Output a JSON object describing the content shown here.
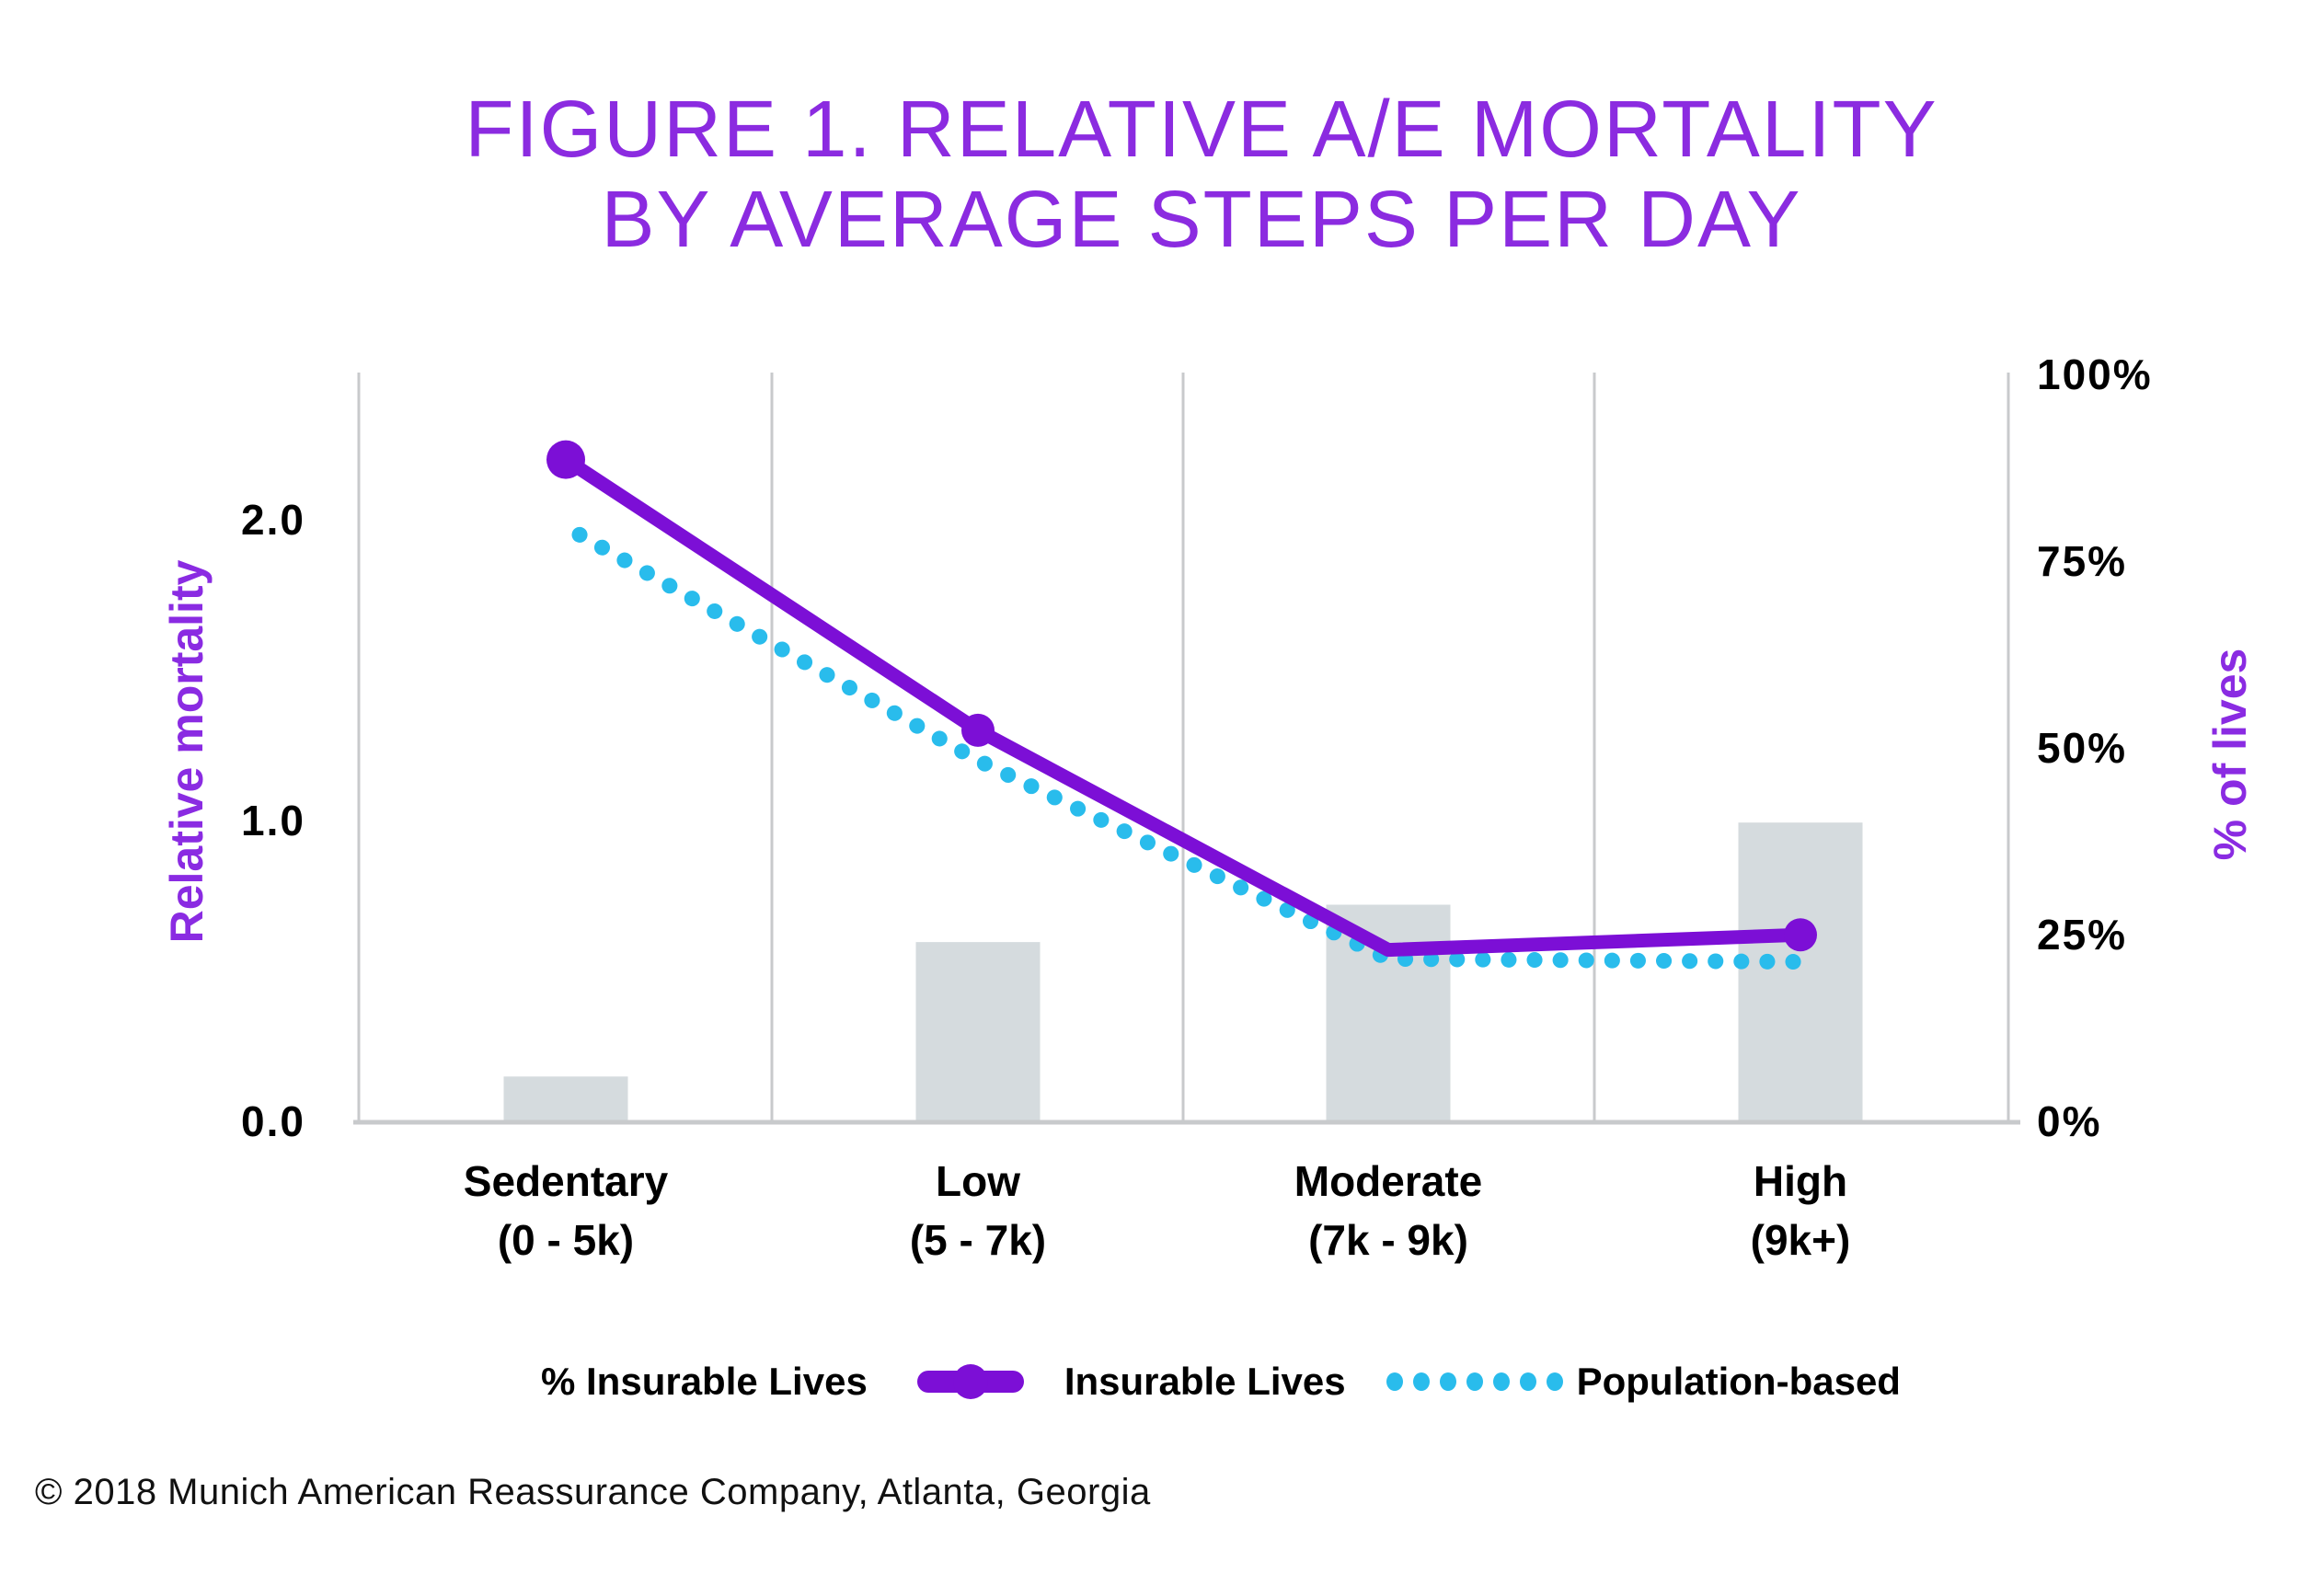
{
  "title": {
    "line1": "FIGURE 1. RELATIVE A/E MORTALITY",
    "line2": "BY AVERAGE STEPS PER DAY"
  },
  "footer": "© 2018 Munich American Reassurance Company, Atlanta, Georgia",
  "colors": {
    "title_purple": "#8B2BE0",
    "axis_label_purple": "#8A2BE2",
    "line_purple": "#7C0FD6",
    "dot_cyan": "#29BCEC",
    "bar_gray": "#D5DBDE",
    "grid_gray": "#C8CACC",
    "text_black": "#000000"
  },
  "chart_data": {
    "type": "combo: bar + line + dotted-line",
    "title": "Figure 1. Relative A/E mortality by average steps per day",
    "categories": [
      {
        "label": "Sedentary",
        "range": "(0 - 5k)"
      },
      {
        "label": "Low",
        "range": "(5 - 7k)"
      },
      {
        "label": "Moderate",
        "range": "(7k - 9k)"
      },
      {
        "label": "High",
        "range": "(9k+)"
      }
    ],
    "series": [
      {
        "name": "% Insurable Lives",
        "type": "bar",
        "axis": "right",
        "values_pct": [
          6,
          24,
          29,
          40
        ]
      },
      {
        "name": "Insurable Lives",
        "type": "line",
        "axis": "left",
        "values": [
          2.2,
          1.3,
          0.57,
          0.62
        ],
        "markers": [
          true,
          true,
          false,
          true
        ]
      },
      {
        "name": "Population-based",
        "type": "dotted-line",
        "axis": "left",
        "values": [
          1.95,
          1.2,
          0.54,
          0.53
        ]
      }
    ],
    "y_left": {
      "label": "Relative mortality",
      "ticks": [
        "2.0",
        "1.0",
        "0.0"
      ],
      "tick_values": [
        2.0,
        1.0,
        0.0
      ],
      "min": 0,
      "max": 2.5,
      "grid": false
    },
    "y_right": {
      "label": "% of lives",
      "ticks": [
        "100%",
        "75%",
        "50%",
        "25%",
        "0%"
      ],
      "tick_values": [
        100,
        75,
        50,
        25,
        0
      ],
      "min": 0,
      "max": 100
    },
    "x_axis": {
      "grid": "vertical separators between categories",
      "legend_position": "bottom"
    }
  }
}
